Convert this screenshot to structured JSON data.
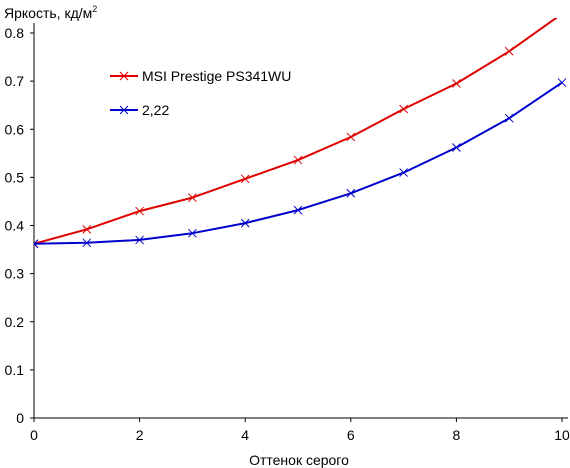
{
  "chart_data": {
    "type": "line",
    "title": "",
    "ylabel": "Яркость, кд/м",
    "ylabel_superscript": "2",
    "xlabel": "Оттенок серого",
    "xlim": [
      0,
      10
    ],
    "ylim": [
      0,
      0.8
    ],
    "xticks": [
      "0",
      "2",
      "4",
      "6",
      "8",
      "10"
    ],
    "yticks": [
      "0",
      "0.1",
      "0.2",
      "0.3",
      "0.4",
      "0.5",
      "0.6",
      "0.7",
      "0.8"
    ],
    "grid": false,
    "legend_position": "top-left",
    "series": [
      {
        "name": "MSI Prestige PS341WU",
        "color": "#e00000",
        "x": [
          0,
          1,
          2,
          3,
          4,
          5,
          6,
          7,
          8,
          9,
          10
        ],
        "y": [
          0.362,
          0.392,
          0.43,
          0.458,
          0.497,
          0.536,
          0.584,
          0.642,
          0.695,
          0.762,
          0.84
        ]
      },
      {
        "name": "2,22",
        "color": "#0000cc",
        "x": [
          0,
          1,
          2,
          3,
          4,
          5,
          6,
          7,
          8,
          9,
          10
        ],
        "y": [
          0.362,
          0.364,
          0.37,
          0.384,
          0.405,
          0.432,
          0.467,
          0.51,
          0.562,
          0.623,
          0.697
        ]
      }
    ]
  }
}
